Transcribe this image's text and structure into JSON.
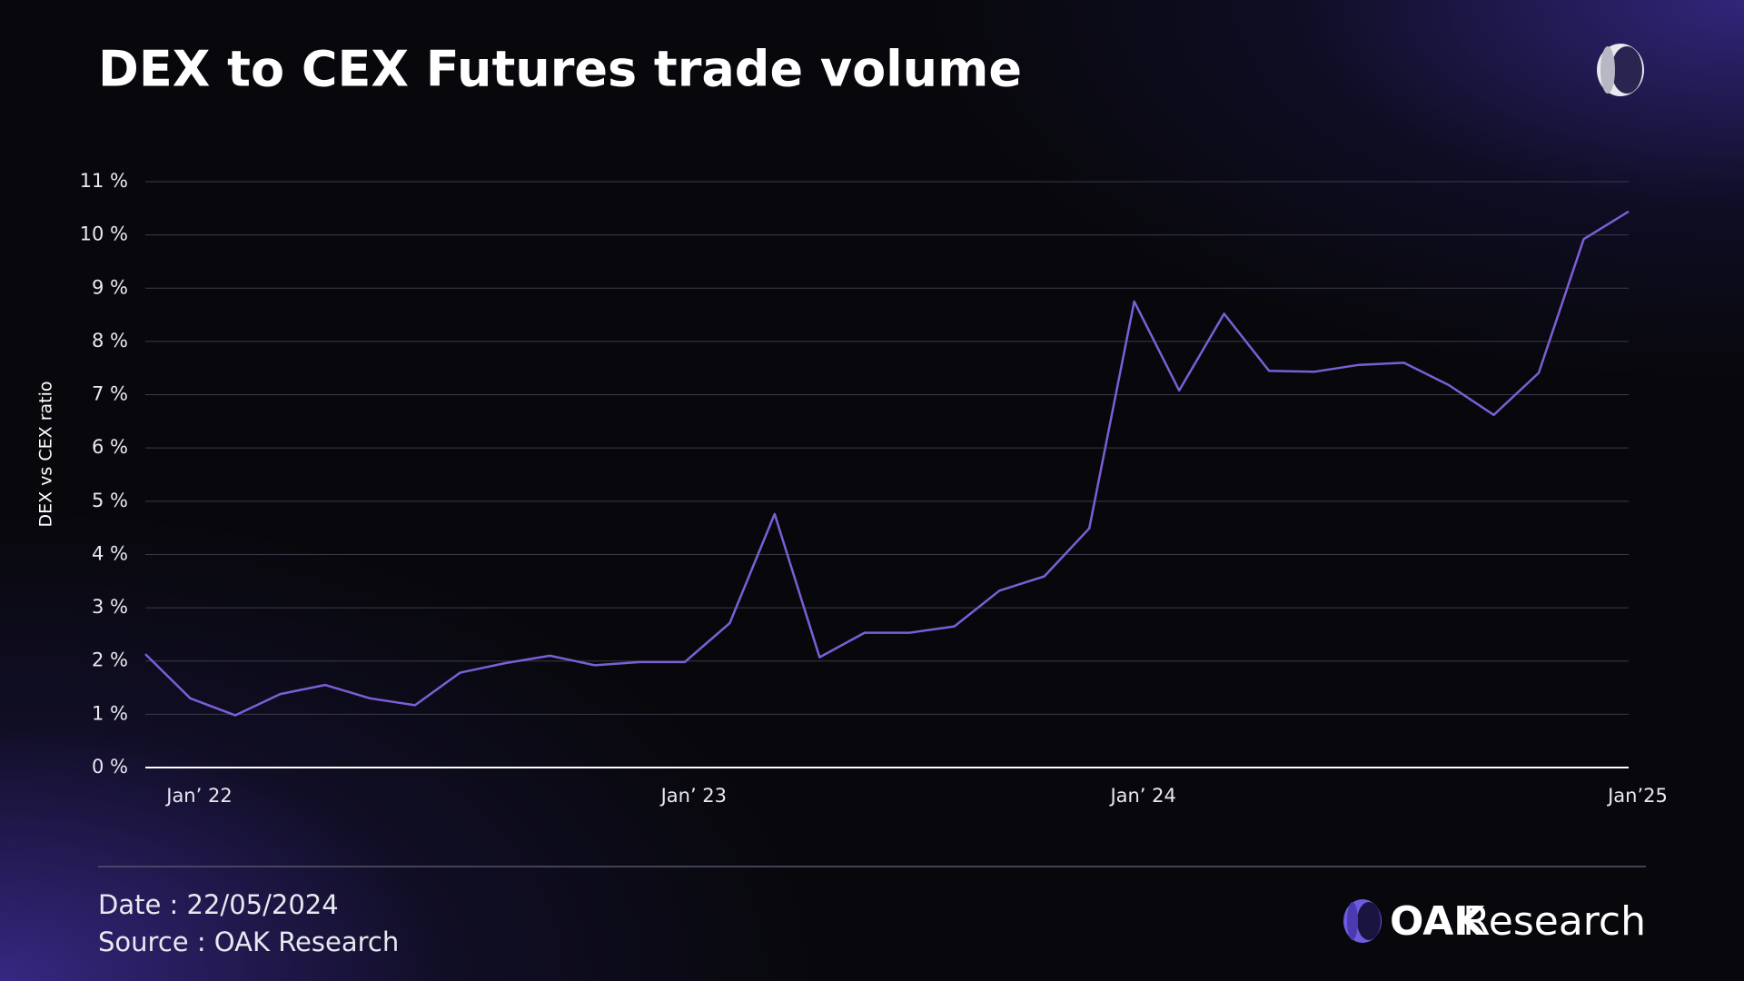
{
  "chart_data": {
    "type": "line",
    "title": "DEX to CEX Futures trade volume",
    "y_label": "DEX vs CEX ratio",
    "categories": [
      null,
      "Jan’ 22",
      null,
      null,
      null,
      null,
      null,
      null,
      null,
      null,
      null,
      null,
      "Jan’ 23",
      null,
      null,
      null,
      null,
      null,
      null,
      null,
      null,
      null,
      "Jan’ 24",
      null,
      null,
      null,
      null,
      null,
      null,
      null,
      null,
      null,
      null,
      "Jan’25"
    ],
    "series": [
      {
        "name": "DEX vs CEX ratio",
        "color": "#7b5fd6",
        "values": [
          2.13,
          1.3,
          0.98,
          1.38,
          1.55,
          1.3,
          1.17,
          1.78,
          1.96,
          2.1,
          1.92,
          1.98,
          1.98,
          2.71,
          4.76,
          2.07,
          2.53,
          2.53,
          2.65,
          3.32,
          3.59,
          4.49,
          8.75,
          7.08,
          8.52,
          7.45,
          7.43,
          7.56,
          7.6,
          7.18,
          6.62,
          7.41,
          9.92,
          10.44
        ]
      }
    ],
    "ylim": [
      0,
      11
    ],
    "yticks": [
      {
        "value": 0,
        "label": "0 %"
      },
      {
        "value": 1,
        "label": "1 %"
      },
      {
        "value": 2,
        "label": "2 %"
      },
      {
        "value": 3,
        "label": "3 %"
      },
      {
        "value": 4,
        "label": "4 %"
      },
      {
        "value": 5,
        "label": "5 %"
      },
      {
        "value": 6,
        "label": "6 %"
      },
      {
        "value": 7,
        "label": "7 %"
      },
      {
        "value": 8,
        "label": "8 %"
      },
      {
        "value": 9,
        "label": "9 %"
      },
      {
        "value": 10,
        "label": "10 %"
      },
      {
        "value": 11,
        "label": "11 %"
      }
    ],
    "grid": true
  },
  "footer": {
    "date": "Date : 22/05/2024",
    "source": "Source : OAK Research",
    "brand": [
      "OAK",
      "Research"
    ]
  }
}
